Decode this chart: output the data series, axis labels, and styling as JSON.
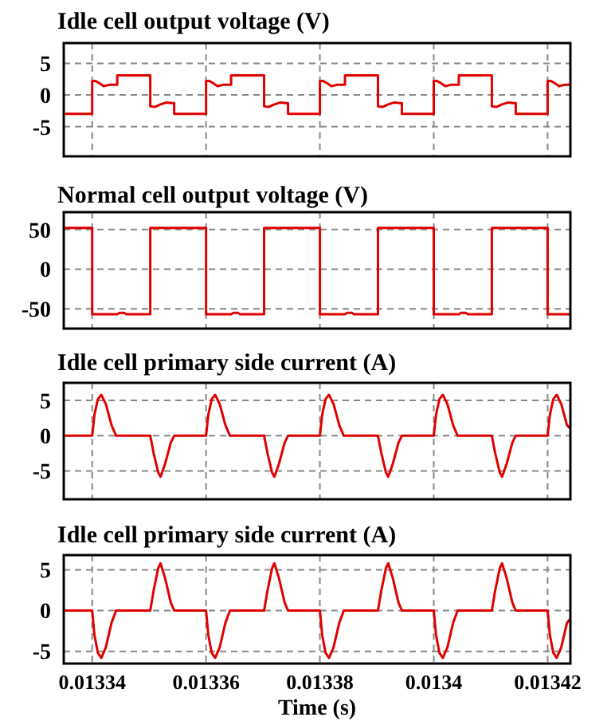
{
  "chart_data": [
    {
      "type": "line",
      "title": "Idle cell output voltage (V)",
      "xlim": [
        0.013335,
        0.013424
      ],
      "xticks": [
        0.01334,
        0.01336,
        0.01338,
        0.0134,
        0.01342
      ],
      "ylim": [
        -9.7,
        8.2
      ],
      "yticks": [
        -5,
        0,
        5
      ],
      "grid": true,
      "tick_labels": "y",
      "x": [
        0.013335,
        0.01334,
        0.01334,
        0.0133406,
        0.0133412,
        0.013342,
        0.013343,
        0.0133444,
        0.0133444,
        0.0133502,
        0.0133502,
        0.013351,
        0.013352,
        0.013353,
        0.013354,
        0.0133544,
        0.0133544,
        0.01336,
        0.01336,
        0.0133606,
        0.0133612,
        0.013362,
        0.013363,
        0.0133644,
        0.0133644,
        0.0133702,
        0.0133702,
        0.013371,
        0.013372,
        0.013373,
        0.013374,
        0.0133744,
        0.0133744,
        0.01338,
        0.01338,
        0.0133806,
        0.0133812,
        0.013382,
        0.013383,
        0.0133844,
        0.0133844,
        0.0133902,
        0.0133902,
        0.013391,
        0.013392,
        0.013393,
        0.013394,
        0.0133944,
        0.0133944,
        0.0134,
        0.0134,
        0.0134006,
        0.0134012,
        0.013402,
        0.013403,
        0.0134044,
        0.0134044,
        0.0134102,
        0.0134102,
        0.013411,
        0.013412,
        0.013413,
        0.013414,
        0.0134144,
        0.0134144,
        0.01342,
        0.01342,
        0.0134206,
        0.0134212,
        0.013422,
        0.013423,
        0.013424
      ],
      "series": [
        {
          "color": "#e00000",
          "values": [
            -3,
            -3,
            2.2,
            2.2,
            1.9,
            1.4,
            1.6,
            1.6,
            3.1,
            3.1,
            -1.8,
            -1.9,
            -1.5,
            -1.2,
            -1.3,
            -1.3,
            -3,
            -3,
            2.2,
            2.2,
            1.9,
            1.4,
            1.6,
            1.6,
            3.1,
            3.1,
            -1.8,
            -1.9,
            -1.5,
            -1.2,
            -1.3,
            -1.3,
            -3,
            -3,
            2.2,
            2.2,
            1.9,
            1.4,
            1.6,
            1.6,
            3.1,
            3.1,
            -1.8,
            -1.9,
            -1.5,
            -1.2,
            -1.3,
            -1.3,
            -3,
            -3,
            2.2,
            2.2,
            1.9,
            1.4,
            1.6,
            1.6,
            3.1,
            3.1,
            -1.8,
            -1.9,
            -1.5,
            -1.2,
            -1.3,
            -1.3,
            -3,
            -3,
            2.2,
            2.2,
            1.9,
            1.4,
            1.6,
            1.6
          ]
        }
      ]
    },
    {
      "type": "line",
      "title": "Normal cell output voltage (V)",
      "xlim": [
        0.013335,
        0.013424
      ],
      "xticks": [
        0.01334,
        0.01336,
        0.01338,
        0.0134,
        0.01342
      ],
      "ylim": [
        -75,
        72
      ],
      "yticks": [
        -50,
        0,
        50
      ],
      "grid": true,
      "tick_labels": "y",
      "x": [
        0.013335,
        0.01334,
        0.01334,
        0.0133444,
        0.0133448,
        0.0133456,
        0.013346,
        0.0133502,
        0.0133502,
        0.01336,
        0.01336,
        0.0133644,
        0.0133648,
        0.0133656,
        0.013366,
        0.0133702,
        0.0133702,
        0.01338,
        0.01338,
        0.0133844,
        0.0133848,
        0.0133856,
        0.013386,
        0.0133902,
        0.0133902,
        0.0134,
        0.0134,
        0.0134044,
        0.0134048,
        0.0134056,
        0.013406,
        0.0134102,
        0.0134102,
        0.01342,
        0.01342,
        0.013424
      ],
      "series": [
        {
          "color": "#e00000",
          "values": [
            52,
            52,
            -57,
            -57,
            -55,
            -55,
            -57,
            -57,
            52,
            52,
            -57,
            -57,
            -55,
            -55,
            -57,
            -57,
            52,
            52,
            -57,
            -57,
            -55,
            -55,
            -57,
            -57,
            52,
            52,
            -57,
            -57,
            -55,
            -55,
            -57,
            -57,
            52,
            52,
            -57,
            -57
          ]
        }
      ]
    },
    {
      "type": "line",
      "title": "Idle cell primary side current (A)",
      "xlim": [
        0.013335,
        0.013424
      ],
      "xticks": [
        0.01334,
        0.01336,
        0.01338,
        0.0134,
        0.01342
      ],
      "ylim": [
        -9,
        7.5
      ],
      "yticks": [
        -5,
        0,
        5
      ],
      "grid": true,
      "tick_labels": "y",
      "x": [
        0.013335,
        0.01334,
        0.0133404,
        0.013341,
        0.0133416,
        0.0133424,
        0.0133434,
        0.0133442,
        0.0133502,
        0.0133508,
        0.0133516,
        0.013352,
        0.0133528,
        0.0133538,
        0.0133544,
        0.01336,
        0.0133604,
        0.013361,
        0.0133616,
        0.0133624,
        0.0133634,
        0.0133642,
        0.0133702,
        0.0133708,
        0.0133716,
        0.013372,
        0.0133728,
        0.0133738,
        0.0133744,
        0.01338,
        0.0133804,
        0.013381,
        0.0133816,
        0.0133824,
        0.0133834,
        0.0133842,
        0.0133902,
        0.0133908,
        0.0133916,
        0.013392,
        0.0133928,
        0.0133938,
        0.0133944,
        0.0134,
        0.0134004,
        0.013401,
        0.0134016,
        0.0134024,
        0.0134034,
        0.0134042,
        0.0134102,
        0.0134108,
        0.0134116,
        0.013412,
        0.0134128,
        0.0134138,
        0.0134144,
        0.01342,
        0.0134204,
        0.013421,
        0.0134216,
        0.0134224,
        0.0134234,
        0.013424
      ],
      "series": [
        {
          "color": "#e00000",
          "values": [
            0,
            0,
            3,
            5.2,
            5.8,
            4.5,
            1.5,
            0,
            0,
            -2.5,
            -5.2,
            -5.8,
            -4,
            -1,
            0,
            0,
            3,
            5.2,
            5.8,
            4.5,
            1.5,
            0,
            0,
            -2.5,
            -5.2,
            -5.8,
            -4,
            -1,
            0,
            0,
            3,
            5.2,
            5.8,
            4.5,
            1.5,
            0,
            0,
            -2.5,
            -5.2,
            -5.8,
            -4,
            -1,
            0,
            0,
            3,
            5.2,
            5.8,
            4.5,
            1.5,
            0,
            0,
            -2.5,
            -5.2,
            -5.8,
            -4,
            -1,
            0,
            0,
            3,
            5.2,
            5.8,
            4.5,
            1.5,
            1
          ]
        }
      ]
    },
    {
      "type": "line",
      "title": "Idle cell primary side current (A)",
      "xlabel": "Time (s)",
      "xlim": [
        0.013335,
        0.013424
      ],
      "xticks": [
        0.01334,
        0.01336,
        0.01338,
        0.0134,
        0.01342
      ],
      "ylim": [
        -6.5,
        6.8
      ],
      "yticks": [
        -5,
        0,
        5
      ],
      "grid": true,
      "x": [
        0.013335,
        0.01334,
        0.0133404,
        0.013341,
        0.0133416,
        0.0133424,
        0.0133434,
        0.0133442,
        0.0133502,
        0.0133508,
        0.0133516,
        0.013352,
        0.0133528,
        0.0133538,
        0.0133544,
        0.01336,
        0.0133604,
        0.013361,
        0.0133616,
        0.0133624,
        0.0133634,
        0.0133642,
        0.0133702,
        0.0133708,
        0.0133716,
        0.013372,
        0.0133728,
        0.0133738,
        0.0133744,
        0.01338,
        0.0133804,
        0.013381,
        0.0133816,
        0.0133824,
        0.0133834,
        0.0133842,
        0.0133902,
        0.0133908,
        0.0133916,
        0.013392,
        0.0133928,
        0.0133938,
        0.0133944,
        0.0134,
        0.0134004,
        0.013401,
        0.0134016,
        0.0134024,
        0.0134034,
        0.0134042,
        0.0134102,
        0.0134108,
        0.0134116,
        0.013412,
        0.0134128,
        0.0134138,
        0.0134144,
        0.01342,
        0.0134204,
        0.013421,
        0.0134216,
        0.0134224,
        0.0134234,
        0.013424
      ],
      "series": [
        {
          "color": "#e00000",
          "values": [
            0,
            0,
            -3,
            -5.2,
            -5.8,
            -4.5,
            -1.5,
            0,
            0,
            2.5,
            5.2,
            5.8,
            4,
            1,
            0,
            0,
            -3,
            -5.2,
            -5.8,
            -4.5,
            -1.5,
            0,
            0,
            2.5,
            5.2,
            5.8,
            4,
            1,
            0,
            0,
            -3,
            -5.2,
            -5.8,
            -4.5,
            -1.5,
            0,
            0,
            2.5,
            5.2,
            5.8,
            4,
            1,
            0,
            0,
            -3,
            -5.2,
            -5.8,
            -4.5,
            -1.5,
            0,
            0,
            2.5,
            5.2,
            5.8,
            4,
            1,
            0,
            0,
            -3,
            -5.2,
            -5.8,
            -4.5,
            -1.5,
            -1
          ]
        }
      ]
    }
  ]
}
